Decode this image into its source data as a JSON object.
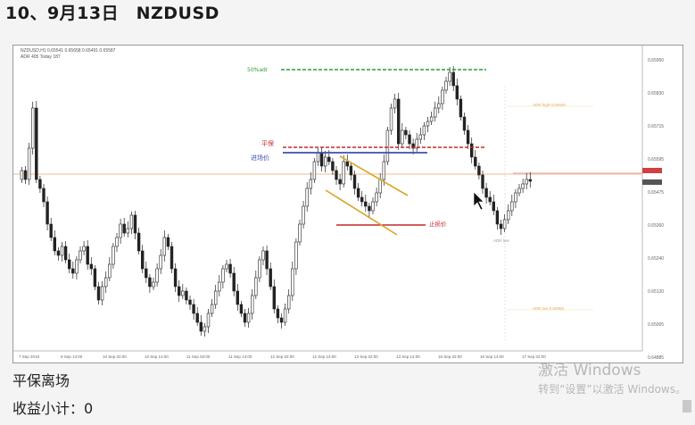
{
  "page_title": "10、9月13日　NZDUSD",
  "chart_header": {
    "symbol_line": "NZDUSD,H1  0.65541 0.65658 0.65491 0.65587",
    "indicator_line": "ADR 405  Today 187"
  },
  "chart_data": {
    "type": "candlestick",
    "x_ticks": [
      "7 Sep 2019",
      "9 Sep 14:00",
      "10 Sep 02:00",
      "10 Sep 14:00",
      "11 Sep 02:00",
      "11 Sep 14:00",
      "12 Sep 02:00",
      "12 Sep 14:00",
      "13 Sep 02:00",
      "13 Sep 14:00",
      "16 Sep 02:00",
      "16 Sep 14:00",
      "17 Sep 02:00"
    ],
    "y_ticks": [
      "0.65950",
      "0.65830",
      "0.65715",
      "0.65595",
      "0.65475",
      "0.65360",
      "0.65240",
      "0.65120",
      "0.65005",
      "0.64885"
    ],
    "annotations": {
      "target_label": "50%adr",
      "breakeven_label": "平保",
      "entry_label": "进场价",
      "stop_label": "止损价",
      "adr_high_label": "ADR high 0.65945",
      "adr_low_label": "ADR low 0.64950",
      "low_marker": "ADR low"
    }
  },
  "footer": {
    "exit_text": "平保离场",
    "pnl_text": "收益小计：0"
  },
  "watermark": {
    "line1": "激活 Windows",
    "line2": "转到“设置”以激活 Windows。"
  }
}
